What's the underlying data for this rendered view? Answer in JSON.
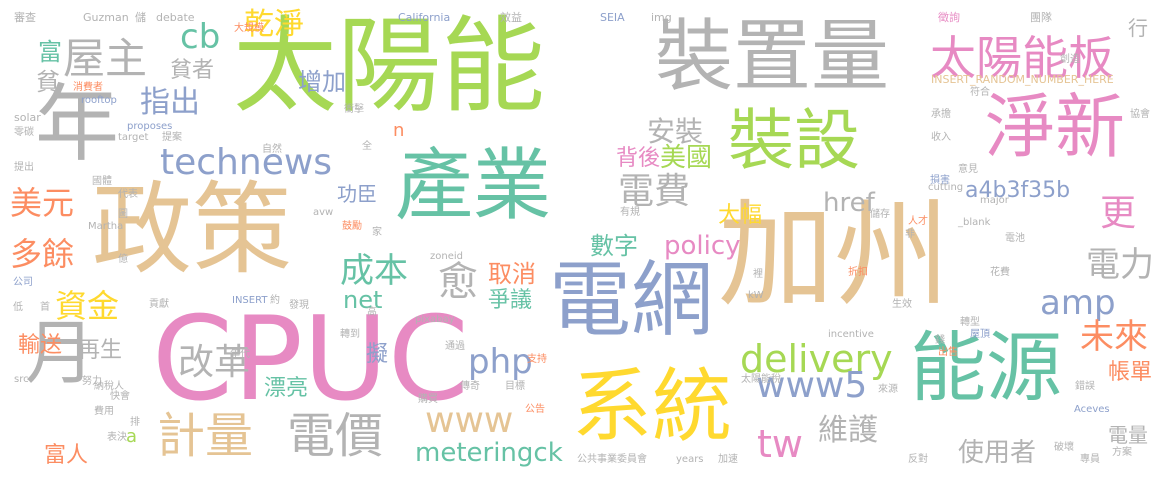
{
  "palette": {
    "green": "#a6d854",
    "tan": "#e5c494",
    "gray": "#b3b3b3",
    "pink": "#e78ac3",
    "teal": "#66c2a5",
    "blue": "#8da0cb",
    "orange": "#fc8d62",
    "yellow": "#ffd92f"
  },
  "words": {
    "w001": "加州",
    "w002": "太陽能",
    "w003": "裝置量",
    "w004": "政策",
    "w005": "CPUC",
    "w006": "產業",
    "w007": "電網",
    "w008": "系統",
    "w009": "能源",
    "w010": "裝設",
    "w011": "淨新",
    "w012": "年",
    "w013": "月",
    "w014": "屋主",
    "w015": "太陽能板",
    "w016": "technews",
    "w017": "delivery",
    "w018": "www5",
    "w019": "計量",
    "w020": "電價",
    "w021": "www",
    "w022": "電費",
    "w023": "成本",
    "w024": "改革",
    "w025": "php",
    "w026": "amp",
    "w027": "tw",
    "w028": "指出",
    "w029": "乾淨",
    "w030": "cb",
    "w031": "安裝",
    "w032": "美元",
    "w033": "多餘",
    "w034": "資金",
    "w035": "更",
    "w036": "電力",
    "w037": "未來",
    "w038": "meteringck",
    "w039": "維護",
    "w040": "使用者",
    "w041": "a4b3f35b",
    "w042": "href",
    "w043": "policy",
    "w044": "美國",
    "w045": "背後",
    "w046": "增加",
    "w047": "貧者",
    "w048": "富",
    "w049": "貧",
    "w050": "行",
    "w051": "net",
    "w052": "愈",
    "w053": "取消",
    "w054": "爭議",
    "w055": "數字",
    "w056": "大幅",
    "w057": "功臣",
    "w058": "輸送",
    "w059": "再生",
    "w060": "漂亮",
    "w061": "擬",
    "w062": "帳單",
    "w063": "電量",
    "w064": "富人",
    "w065": "a",
    "w066": "n",
    "w067": "審查",
    "w068": "Guzman",
    "w069": "儲",
    "w070": "debate",
    "w071": "California",
    "w072": "效益",
    "w073": "SEIA",
    "w074": "img",
    "w075": "徵詢",
    "w076": "團隊",
    "w077": "公司",
    "w078": "大規模",
    "w079": "INSERT_RANDOM_NUMBER_HERE",
    "w080": "創造",
    "w081": "協會",
    "w082": "消費者",
    "w083": "rooftop",
    "w084": "solar",
    "w085": "零碳",
    "w086": "提出",
    "w087": "國體",
    "w088": "proposes",
    "w089": "target",
    "w090": "提案",
    "w091": "衝擊",
    "w092": "自然",
    "w093": "全",
    "w094": "符合",
    "w095": "承擔",
    "w096": "收入",
    "w097": "意見",
    "w098": "損害",
    "w099": "cutting",
    "w100": "major",
    "w101": "代表",
    "w102": "圖",
    "w103": "Martha",
    "w104": "億",
    "w105": "avw",
    "w106": "鼓勵",
    "w107": "家",
    "w108": "有規",
    "w109": "儲存",
    "w110": "人才",
    "w111": "非",
    "w112": "_blank",
    "w113": "電池",
    "w114": "花費",
    "w115": "zoneid",
    "w116": "折扣",
    "w117": "裡",
    "w118": "kW",
    "w119": "低",
    "w120": "首",
    "w121": "貢獻",
    "w122": "INSERT",
    "w123": "約",
    "w124": "發現",
    "w125": "高",
    "w126": "生效",
    "w127": "轉型",
    "w128": "屋頂",
    "w129": "pixabay",
    "w130": "incentive",
    "w131": "錢",
    "w132": "出售",
    "w133": "轉到",
    "w134": "年代",
    "w135": "通過",
    "w136": "支持",
    "w137": "太陽能稅",
    "w138": "來源",
    "w139": "錯誤",
    "w140": "src",
    "w141": "努力",
    "w142": "納稅人",
    "w143": "快會",
    "w144": "傳奇",
    "w145": "目標",
    "w146": "公告",
    "w147": "購買",
    "w148": "Aceves",
    "w149": "費用",
    "w150": "排",
    "w151": "表決",
    "w152": "公共事業委員會",
    "w153": "years",
    "w154": "加速",
    "w155": "反對",
    "w156": "破壞",
    "w157": "專員",
    "w158": "方案"
  }
}
